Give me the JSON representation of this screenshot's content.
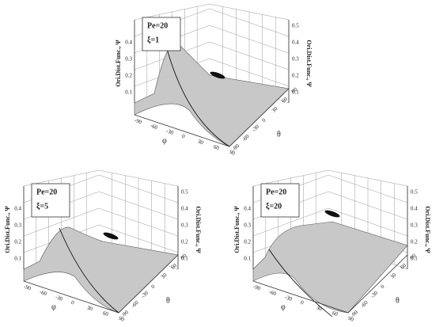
{
  "panels": [
    {
      "legend": [
        "Pe=20",
        "ξ=1"
      ],
      "left_title": "Ori.Dist.Func., Ψ",
      "right_title": "Ori.Dist.Func., Ψ",
      "left_ticks": [
        "0.1",
        "0.2",
        "0.3",
        "0.4"
      ],
      "right_ticks": [
        "0.1",
        "0.2",
        "0.3",
        "0.4",
        "0.5"
      ],
      "front_left_ticks": [
        "-90",
        "-60",
        "-30",
        "0",
        "30",
        "60",
        "90"
      ],
      "front_right_ticks": [
        "-90",
        "-60",
        "-30",
        "0",
        "30",
        "60",
        "90"
      ],
      "left_symbol": "φ",
      "right_symbol": "θ"
    },
    {
      "legend": [
        "Pe=20",
        "ξ=5"
      ],
      "left_title": "Ori.Dist.Func., Ψ",
      "right_title": "Ori.Dist.Func., Ψ",
      "left_ticks": [
        "0.1",
        "0.2",
        "0.3",
        "0.4"
      ],
      "right_ticks": [
        "0.1",
        "0.2",
        "0.3",
        "0.4",
        "0.5"
      ],
      "front_left_ticks": [
        "-90",
        "-60",
        "-30",
        "0",
        "30",
        "60",
        "90"
      ],
      "front_right_ticks": [
        "-90",
        "-60",
        "-30",
        "0",
        "30",
        "60",
        "90"
      ],
      "left_symbol": "φ",
      "right_symbol": "θ"
    },
    {
      "legend": [
        "Pe=20",
        "ξ=20"
      ],
      "left_title": "Ori.Dist.Func., Ψ",
      "right_title": "Ori.Dist.Func., Ψ",
      "left_ticks": [
        "0.1",
        "0.2",
        "0.3",
        "0.4"
      ],
      "right_ticks": [
        "0.1",
        "0.2",
        "0.3",
        "0.4",
        "0.5"
      ],
      "front_left_ticks": [
        "-90",
        "-60",
        "-30",
        "0",
        "30",
        "60",
        "90"
      ],
      "front_right_ticks": [
        "-90",
        "-60",
        "-30",
        "0",
        "30",
        "60",
        "90"
      ],
      "left_symbol": "φ",
      "right_symbol": "θ"
    }
  ]
}
